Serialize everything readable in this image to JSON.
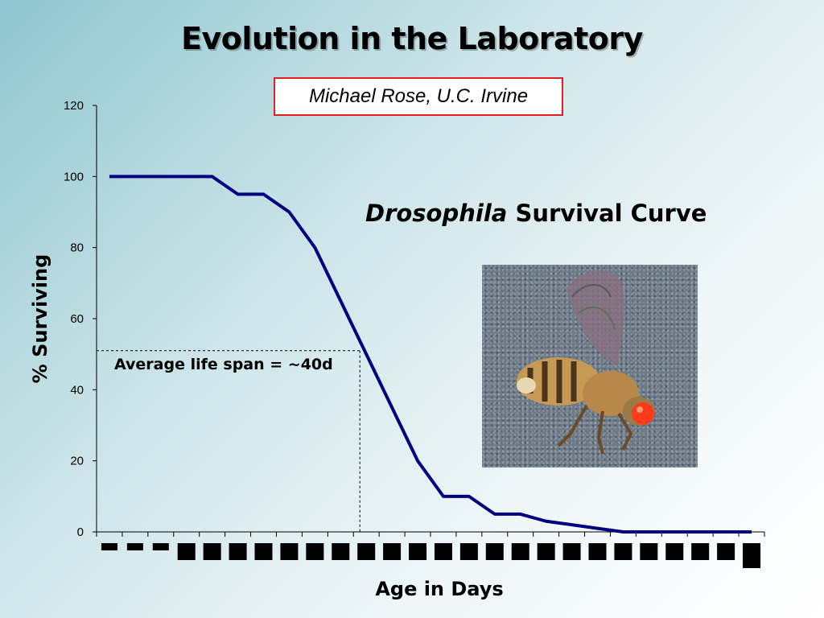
{
  "slide": {
    "title": "Evolution in the Laboratory",
    "credit": "Michael Rose, U.C. Irvine",
    "subtitle_italic": "Drosophila",
    "subtitle_rest": " Survival Curve"
  },
  "photo": {
    "icon": "fruit-fly-photo"
  },
  "colors": {
    "line": "#000080",
    "credit_border": "#e02020"
  },
  "chart_data": {
    "type": "line",
    "title": "Drosophila Survival Curve",
    "xlabel": "Age in Days",
    "ylabel": "% Surviving",
    "ylim": [
      0,
      120
    ],
    "yticks": [
      0,
      20,
      40,
      60,
      80,
      100,
      120
    ],
    "x_categories": 26,
    "x_tick_labels_obscured": true,
    "series": [
      {
        "values": [
          100,
          100,
          100,
          100,
          100,
          95,
          95,
          90,
          80,
          65,
          50,
          35,
          20,
          10,
          10,
          5,
          5,
          3,
          2,
          1,
          0,
          0,
          0,
          0,
          0,
          0
        ]
      }
    ],
    "annotation": {
      "text": "Average life span = ~40d",
      "category_index": 10,
      "y": 51
    },
    "grid": false
  }
}
